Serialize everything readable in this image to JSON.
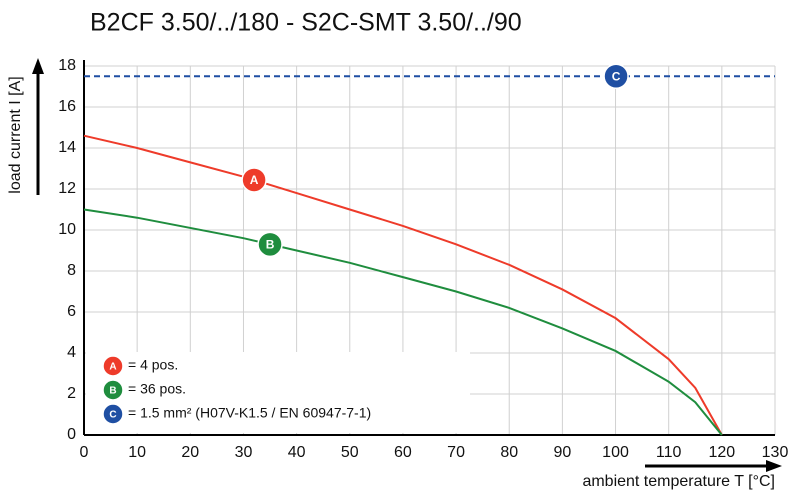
{
  "chart_data": {
    "type": "line",
    "title": "B2CF 3.50/../180 - S2C-SMT 3.50/../90",
    "x_label": "ambient temperature T [°C]",
    "y_label": "load current I [A]",
    "x": [
      0,
      10,
      20,
      30,
      40,
      50,
      60,
      70,
      80,
      90,
      100,
      110,
      115,
      120
    ],
    "series": [
      {
        "name": "A",
        "legend": "= 4 pos.",
        "color": "#ee3b2a",
        "values": [
          14.6,
          14.0,
          13.3,
          12.6,
          11.8,
          11.0,
          10.2,
          9.3,
          8.3,
          7.1,
          5.7,
          3.7,
          2.3,
          0
        ]
      },
      {
        "name": "B",
        "legend": "= 36 pos.",
        "color": "#1f8d3e",
        "values": [
          11.0,
          10.6,
          10.1,
          9.6,
          9.0,
          8.4,
          7.7,
          7.0,
          6.2,
          5.2,
          4.1,
          2.6,
          1.6,
          0
        ]
      }
    ],
    "limit": {
      "name": "C",
      "legend": "= 1.5 mm² (H07V-K1.5 / EN 60947-7-1)",
      "color": "#1f4fa3",
      "value": 17.5
    },
    "xlim": [
      0,
      130
    ],
    "xticks": [
      0,
      10,
      20,
      30,
      40,
      50,
      60,
      70,
      80,
      90,
      100,
      110,
      120,
      130
    ],
    "ylim": [
      0,
      18
    ],
    "yticks": [
      0,
      2,
      4,
      6,
      8,
      10,
      12,
      14,
      16,
      18
    ],
    "grid": true
  }
}
